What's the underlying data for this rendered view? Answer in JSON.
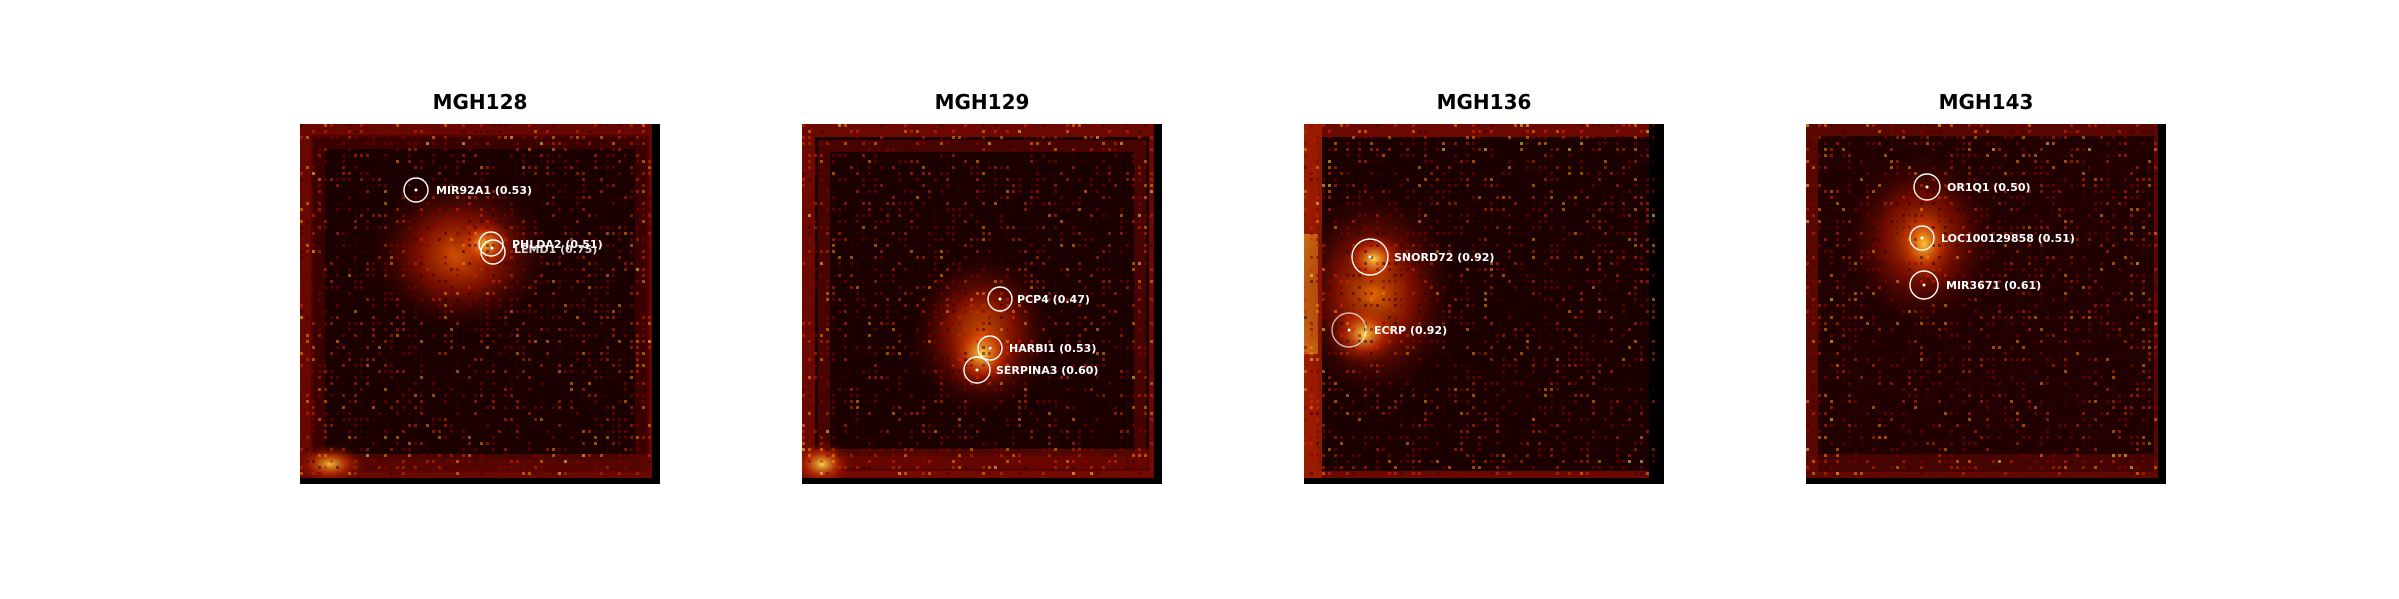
{
  "panels": [
    {
      "title": "MGH128",
      "annotations": [
        {
          "label": "MIR92A1 (0.53)"
        },
        {
          "label": "PHLDA2 (0.51)"
        },
        {
          "label": "LEMD1 (0.75)"
        }
      ]
    },
    {
      "title": "MGH129",
      "annotations": [
        {
          "label": "PCP4 (0.47)"
        },
        {
          "label": "HARBI1 (0.53)"
        },
        {
          "label": "SERPINA3 (0.60)"
        }
      ]
    },
    {
      "title": "MGH136",
      "annotations": [
        {
          "label": "SNORD72 (0.92)"
        },
        {
          "label": "ECRP (0.92)"
        }
      ]
    },
    {
      "title": "MGH143",
      "annotations": [
        {
          "label": "OR1Q1 (0.50)"
        },
        {
          "label": "LOC100129858 (0.51)"
        },
        {
          "label": "MIR3671 (0.61)"
        }
      ]
    }
  ],
  "colormap": [
    "#000000",
    "#3a0000",
    "#8a0000",
    "#d42a00",
    "#ff8c00",
    "#ffe04a"
  ]
}
